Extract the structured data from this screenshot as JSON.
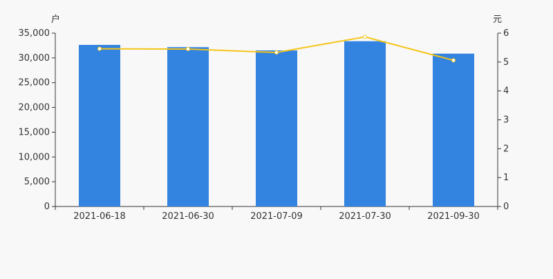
{
  "chart_data": {
    "type": "bar",
    "categories": [
      "2021-06-18",
      "2021-06-30",
      "2021-07-09",
      "2021-07-30",
      "2021-09-30"
    ],
    "series": [
      {
        "type": "bar",
        "axis": "left",
        "color": "#3383e0",
        "values": [
          32630,
          32170,
          31510,
          33370,
          30860
        ]
      },
      {
        "type": "line",
        "axis": "right",
        "color": "#f5c518",
        "values": [
          5.46,
          5.45,
          5.33,
          5.87,
          5.06
        ]
      }
    ],
    "ylabel_left": "户",
    "ylabel_right": "元",
    "ylim_left": [
      0,
      35000
    ],
    "ylim_right": [
      0,
      6
    ],
    "yticks_left": [
      "0",
      "5,000",
      "10,000",
      "15,000",
      "20,000",
      "25,000",
      "30,000",
      "35,000"
    ],
    "yticks_right": [
      "0",
      "1",
      "2",
      "3",
      "4",
      "5",
      "6"
    ],
    "grid": false,
    "legend": "none"
  }
}
